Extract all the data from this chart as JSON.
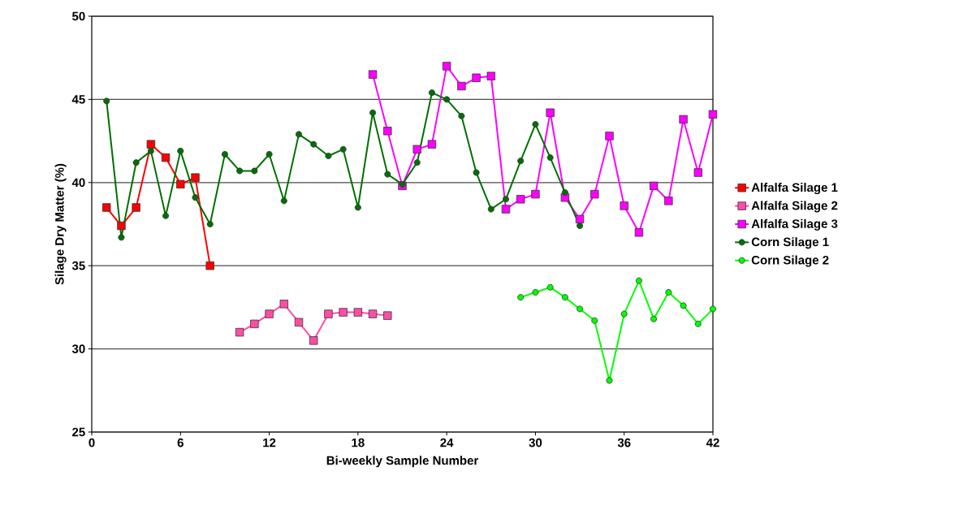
{
  "chart_data": {
    "type": "line",
    "xlabel": "Bi-weekly Sample Number",
    "ylabel": "Silage Dry Matter (%)",
    "xlim": [
      0,
      42
    ],
    "xticks": [
      0,
      6,
      12,
      18,
      24,
      30,
      36,
      42
    ],
    "ylim": [
      25,
      50
    ],
    "yticks": [
      25,
      30,
      35,
      40,
      45,
      50
    ],
    "grid": "y",
    "legend": "right",
    "series": [
      {
        "name": "Alfalfa Silage 1",
        "color": "#ff0000",
        "marker": "square",
        "x": [
          1,
          2,
          3,
          4,
          5,
          6,
          7,
          8
        ],
        "values": [
          38.5,
          37.4,
          38.5,
          42.3,
          41.5,
          39.9,
          40.3,
          35.0
        ]
      },
      {
        "name": "Alfalfa Silage 2",
        "color": "#ff4da6",
        "marker": "square",
        "x": [
          10,
          11,
          12,
          13,
          14,
          15,
          16,
          17,
          18,
          19,
          20
        ],
        "values": [
          31.0,
          31.5,
          32.1,
          32.7,
          31.6,
          30.5,
          32.1,
          32.2,
          32.2,
          32.1,
          32.0
        ]
      },
      {
        "name": "Alfalfa Silage 3",
        "color": "#ff00ff",
        "marker": "square",
        "x": [
          19,
          20,
          21,
          22,
          23,
          24,
          25,
          26,
          27,
          28,
          29,
          30,
          31,
          32,
          33,
          34,
          35,
          36,
          37,
          38,
          39,
          40,
          41,
          42
        ],
        "values": [
          46.5,
          43.1,
          39.8,
          42.0,
          42.3,
          47.0,
          45.8,
          46.3,
          46.4,
          38.4,
          39.0,
          39.3,
          44.2,
          39.1,
          37.8,
          39.3,
          42.8,
          38.6,
          37.0,
          39.8,
          38.9,
          43.8,
          40.6,
          44.1
        ]
      },
      {
        "name": "Corn Silage 1",
        "color": "#007000",
        "marker": "circle",
        "x": [
          1,
          2,
          3,
          4,
          5,
          6,
          7,
          8,
          9,
          10,
          11,
          12,
          13,
          14,
          15,
          16,
          17,
          18,
          19,
          20,
          21,
          22,
          23,
          24,
          25,
          26,
          27,
          28,
          29,
          30,
          31,
          32,
          33
        ],
        "values": [
          44.9,
          36.7,
          41.2,
          41.9,
          38.0,
          41.9,
          39.1,
          37.5,
          41.7,
          40.7,
          40.7,
          41.7,
          38.9,
          42.9,
          42.3,
          41.6,
          42.0,
          38.5,
          44.2,
          40.5,
          39.9,
          41.2,
          45.4,
          45.0,
          44.0,
          40.6,
          38.4,
          39.0,
          41.3,
          43.5,
          41.5,
          39.4,
          37.4
        ]
      },
      {
        "name": "Corn Silage 2",
        "color": "#00ff00",
        "marker": "circle",
        "x": [
          29,
          30,
          31,
          32,
          33,
          34,
          35,
          36,
          37,
          38,
          39,
          40,
          41,
          42
        ],
        "values": [
          33.1,
          33.4,
          33.7,
          33.1,
          32.4,
          31.7,
          28.1,
          32.1,
          34.1,
          31.8,
          33.4,
          32.6,
          31.5,
          32.4
        ]
      }
    ]
  }
}
